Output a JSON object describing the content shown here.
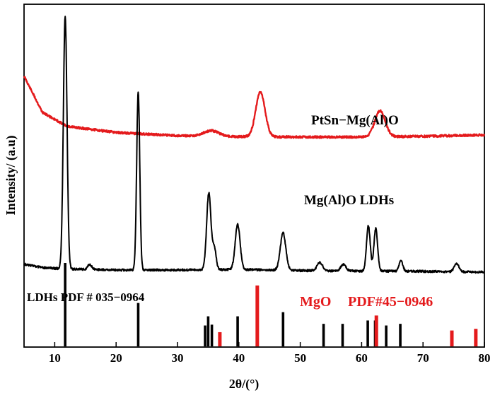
{
  "chart_data": {
    "type": "line",
    "xlabel": "2θ/(°)",
    "ylabel": "Intensity/ (a.u)",
    "xlim": [
      5,
      80
    ],
    "xticks": [
      10,
      20,
      30,
      40,
      50,
      60,
      70,
      80
    ],
    "grid": false,
    "colors": {
      "ldh": "#000000",
      "ptsn": "#e41a1c",
      "ref_ldh": "#000000",
      "ref_mgo": "#e41a1c"
    },
    "series": [
      {
        "name": "PtSn−Mg(Al)O",
        "color": "#e41a1c",
        "baseline": [
          [
            5,
            0.56
          ],
          [
            8,
            0.455
          ],
          [
            12,
            0.415
          ],
          [
            20,
            0.397
          ],
          [
            30,
            0.388
          ],
          [
            40,
            0.385
          ],
          [
            50,
            0.384
          ],
          [
            60,
            0.384
          ],
          [
            70,
            0.386
          ],
          [
            80,
            0.39
          ]
        ],
        "peaks": [
          [
            35.5,
            0.016,
            1.2
          ],
          [
            43.5,
            0.13,
            0.75
          ],
          [
            63.0,
            0.075,
            0.85
          ]
        ]
      },
      {
        "name": "Mg(Al)O LDHs",
        "color": "#000000",
        "baseline": [
          [
            5,
            0.03
          ],
          [
            8,
            0.017
          ],
          [
            12,
            0.012
          ],
          [
            20,
            0.008
          ],
          [
            30,
            0.008
          ],
          [
            40,
            0.01
          ],
          [
            50,
            0.006
          ],
          [
            60,
            0.004
          ],
          [
            70,
            0.003
          ],
          [
            80,
            0.0
          ]
        ],
        "peaks": [
          [
            11.7,
            0.95,
            0.3
          ],
          [
            15.7,
            0.02,
            0.3
          ],
          [
            23.6,
            0.67,
            0.25
          ],
          [
            35.1,
            0.29,
            0.35
          ],
          [
            36.0,
            0.08,
            0.3
          ],
          [
            39.8,
            0.17,
            0.4
          ],
          [
            47.2,
            0.14,
            0.45
          ],
          [
            53.2,
            0.03,
            0.45
          ],
          [
            57.0,
            0.025,
            0.4
          ],
          [
            61.1,
            0.17,
            0.3
          ],
          [
            62.3,
            0.16,
            0.3
          ],
          [
            66.4,
            0.04,
            0.3
          ],
          [
            75.5,
            0.03,
            0.4
          ]
        ]
      }
    ],
    "reference_patterns": [
      {
        "name": "LDHs PDF # 035−0964",
        "color": "#000000",
        "lines": [
          [
            11.7,
            1.0
          ],
          [
            23.6,
            0.52
          ],
          [
            34.5,
            0.25
          ],
          [
            35.0,
            0.36
          ],
          [
            35.6,
            0.26
          ],
          [
            39.8,
            0.36
          ],
          [
            47.2,
            0.41
          ],
          [
            53.8,
            0.27
          ],
          [
            56.9,
            0.27
          ],
          [
            61.0,
            0.31
          ],
          [
            62.2,
            0.31
          ],
          [
            64.0,
            0.25
          ],
          [
            66.3,
            0.27
          ]
        ]
      },
      {
        "name": "MgO PDF#45−0946",
        "color": "#e41a1c",
        "lines": [
          [
            36.9,
            0.17
          ],
          [
            43.0,
            0.73
          ],
          [
            62.4,
            0.37
          ],
          [
            74.7,
            0.19
          ],
          [
            78.6,
            0.21
          ]
        ]
      }
    ],
    "annotations": {
      "ptsn": "PtSn−Mg(Al)O",
      "ldh": "Mg(Al)O LDHs",
      "ref_ldh": "LDHs PDF # 035−0964",
      "ref_mgo_a": "MgO",
      "ref_mgo_b": "PDF#45−0946"
    }
  }
}
